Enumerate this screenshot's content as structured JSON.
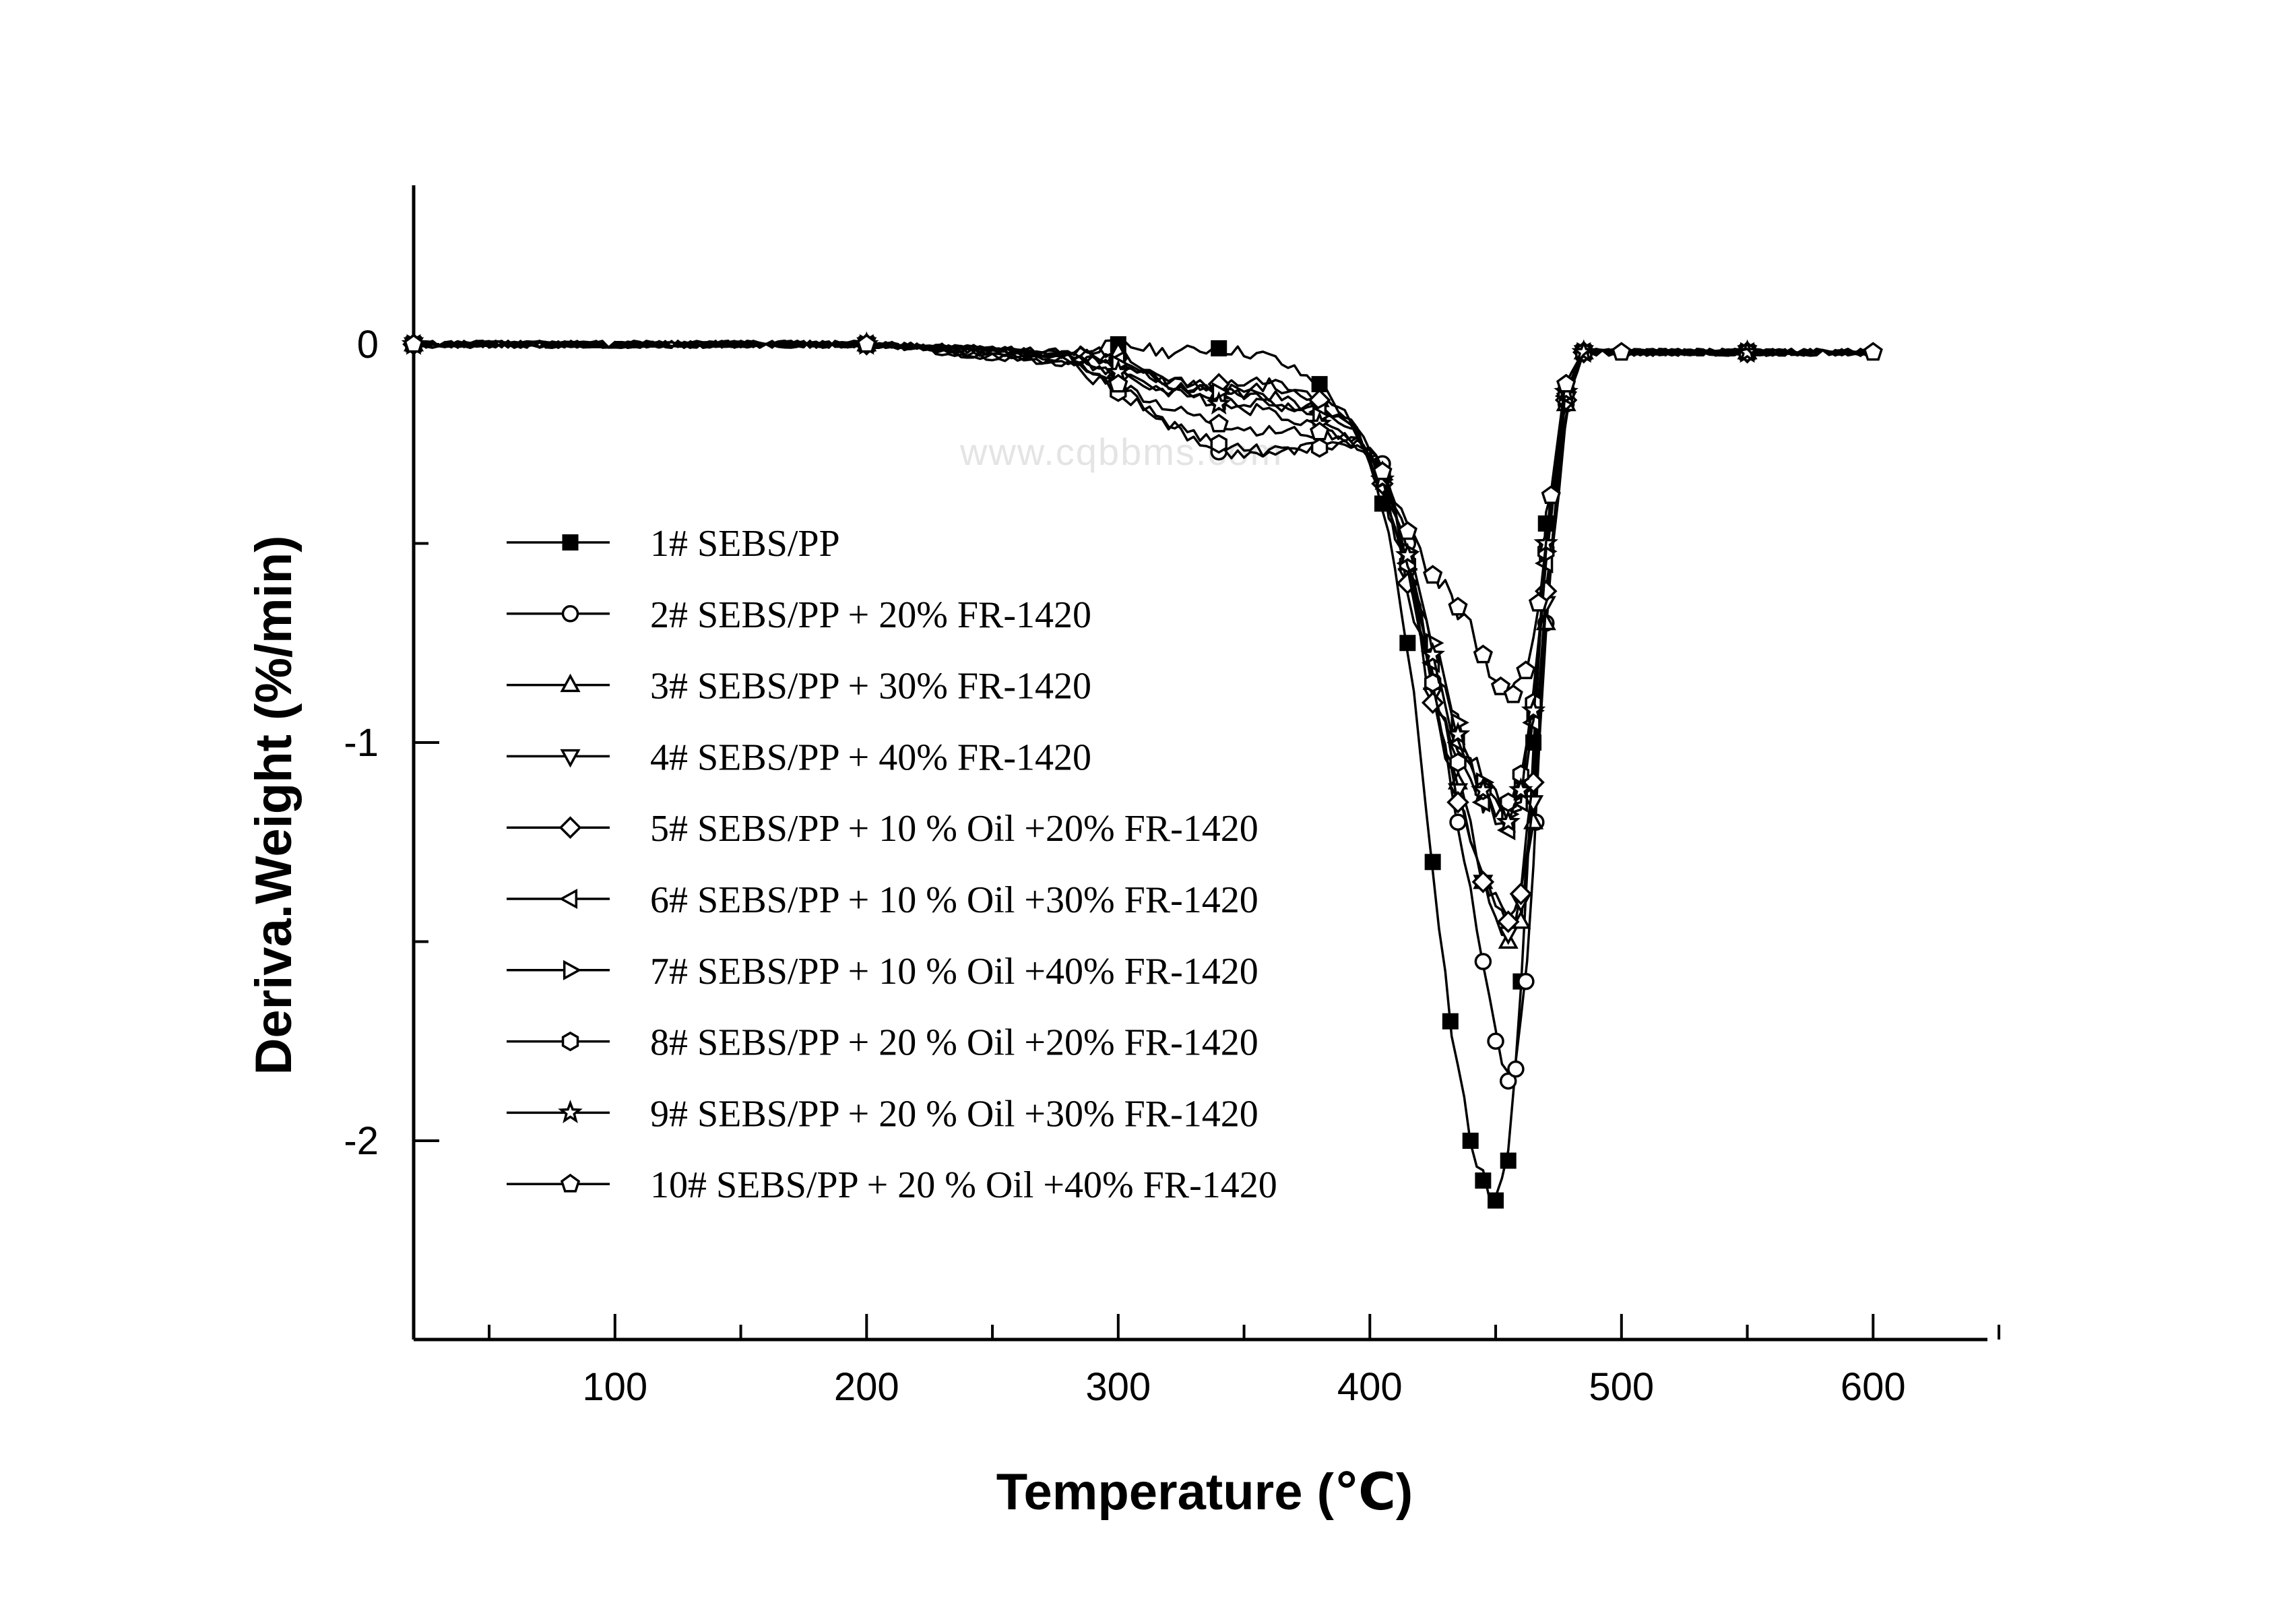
{
  "chart_data": {
    "type": "line",
    "title": "",
    "xlabel": "Temperature (℃)",
    "ylabel": "Deriva.Weight (%/min)",
    "xlim": [
      20,
      650
    ],
    "ylim": [
      -2.5,
      0.4
    ],
    "xticks": [
      100,
      200,
      300,
      400,
      500,
      600
    ],
    "yticks": [
      0,
      -1,
      -2
    ],
    "xtick_labels": [
      "100",
      "200",
      "300",
      "400",
      "500",
      "600"
    ],
    "ytick_labels": [
      "0",
      "-1",
      "-2"
    ],
    "grid": false,
    "legend_position": "center-left",
    "watermark": "www.cqbbms.com",
    "series": [
      {
        "name": "1# SEBS/PP",
        "marker": "filled-square",
        "x": [
          20,
          100,
          200,
          280,
          300,
          320,
          340,
          360,
          380,
          395,
          405,
          415,
          425,
          432,
          440,
          445,
          450,
          455,
          460,
          465,
          470,
          478,
          485,
          500,
          550,
          600
        ],
        "y": [
          0,
          0,
          0,
          -0.02,
          0.0,
          -0.02,
          -0.01,
          -0.03,
          -0.1,
          -0.22,
          -0.4,
          -0.75,
          -1.3,
          -1.7,
          -2.0,
          -2.1,
          -2.15,
          -2.05,
          -1.6,
          -1.0,
          -0.45,
          -0.12,
          -0.02,
          -0.02,
          -0.02,
          -0.02
        ]
      },
      {
        "name": "2# SEBS/PP + 20% FR-1420",
        "marker": "open-circle",
        "x": [
          20,
          100,
          200,
          280,
          300,
          320,
          340,
          360,
          380,
          395,
          405,
          415,
          425,
          435,
          445,
          450,
          455,
          458,
          462,
          466,
          470,
          478,
          485,
          500,
          550,
          600
        ],
        "y": [
          0,
          0,
          0,
          -0.04,
          -0.1,
          -0.2,
          -0.27,
          -0.28,
          -0.26,
          -0.24,
          -0.3,
          -0.5,
          -0.85,
          -1.2,
          -1.55,
          -1.75,
          -1.85,
          -1.82,
          -1.6,
          -1.2,
          -0.7,
          -0.15,
          -0.02,
          -0.02,
          -0.02,
          -0.02
        ]
      },
      {
        "name": "3# SEBS/PP + 30% FR-1420",
        "marker": "open-triangle-up",
        "x": [
          20,
          100,
          200,
          280,
          300,
          320,
          340,
          360,
          380,
          395,
          405,
          415,
          425,
          435,
          445,
          455,
          460,
          465,
          470,
          478,
          485,
          500,
          550,
          600
        ],
        "y": [
          0,
          0,
          0,
          -0.02,
          -0.02,
          -0.08,
          -0.12,
          -0.1,
          -0.14,
          -0.2,
          -0.32,
          -0.55,
          -0.85,
          -1.1,
          -1.35,
          -1.5,
          -1.45,
          -1.2,
          -0.7,
          -0.15,
          -0.02,
          -0.02,
          -0.02,
          -0.02
        ]
      },
      {
        "name": "4# SEBS/PP + 40% FR-1420",
        "marker": "open-triangle-down",
        "x": [
          20,
          100,
          200,
          280,
          300,
          320,
          340,
          360,
          380,
          395,
          405,
          415,
          425,
          435,
          445,
          455,
          460,
          465,
          470,
          478,
          485,
          500,
          550,
          600
        ],
        "y": [
          0,
          0,
          0,
          -0.03,
          -0.05,
          -0.1,
          -0.12,
          -0.13,
          -0.16,
          -0.22,
          -0.35,
          -0.58,
          -0.88,
          -1.12,
          -1.35,
          -1.48,
          -1.4,
          -1.15,
          -0.65,
          -0.14,
          -0.02,
          -0.02,
          -0.02,
          -0.02
        ]
      },
      {
        "name": "5# SEBS/PP + 10 % Oil +20% FR-1420",
        "marker": "open-diamond",
        "x": [
          20,
          100,
          200,
          280,
          300,
          320,
          340,
          360,
          380,
          395,
          405,
          415,
          425,
          435,
          445,
          455,
          460,
          465,
          470,
          478,
          485,
          500,
          550,
          600
        ],
        "y": [
          0,
          0,
          0,
          -0.03,
          -0.08,
          -0.12,
          -0.1,
          -0.09,
          -0.14,
          -0.22,
          -0.35,
          -0.6,
          -0.9,
          -1.15,
          -1.35,
          -1.45,
          -1.38,
          -1.1,
          -0.62,
          -0.14,
          -0.02,
          -0.02,
          -0.02,
          -0.02
        ]
      },
      {
        "name": "6# SEBS/PP + 10 % Oil +30% FR-1420",
        "marker": "open-triangle-left",
        "x": [
          20,
          100,
          200,
          280,
          300,
          320,
          340,
          360,
          380,
          395,
          405,
          415,
          425,
          435,
          445,
          455,
          460,
          465,
          470,
          478,
          485,
          500,
          550,
          600
        ],
        "y": [
          0,
          0,
          0,
          -0.02,
          -0.04,
          -0.1,
          -0.14,
          -0.15,
          -0.17,
          -0.22,
          -0.33,
          -0.55,
          -0.8,
          -1.0,
          -1.15,
          -1.22,
          -1.15,
          -0.95,
          -0.55,
          -0.13,
          -0.02,
          -0.02,
          -0.02,
          -0.02
        ]
      },
      {
        "name": "7# SEBS/PP + 10 % Oil +40% FR-1420",
        "marker": "open-triangle-right",
        "x": [
          20,
          100,
          200,
          280,
          300,
          320,
          340,
          360,
          380,
          395,
          405,
          415,
          425,
          435,
          445,
          455,
          460,
          465,
          470,
          478,
          485,
          500,
          550,
          600
        ],
        "y": [
          0,
          0,
          0,
          -0.02,
          -0.05,
          -0.09,
          -0.12,
          -0.14,
          -0.18,
          -0.24,
          -0.34,
          -0.52,
          -0.75,
          -0.95,
          -1.1,
          -1.18,
          -1.12,
          -0.92,
          -0.52,
          -0.12,
          -0.02,
          -0.02,
          -0.02,
          -0.02
        ]
      },
      {
        "name": "8# SEBS/PP + 20 % Oil +20% FR-1420",
        "marker": "open-hexagon",
        "x": [
          20,
          100,
          200,
          280,
          300,
          320,
          340,
          360,
          380,
          395,
          405,
          415,
          425,
          435,
          445,
          455,
          460,
          465,
          470,
          478,
          485,
          500,
          550,
          600
        ],
        "y": [
          0,
          0,
          0,
          -0.05,
          -0.12,
          -0.2,
          -0.25,
          -0.27,
          -0.26,
          -0.25,
          -0.33,
          -0.55,
          -0.85,
          -1.05,
          -1.12,
          -1.15,
          -1.08,
          -0.9,
          -0.52,
          -0.12,
          -0.02,
          -0.02,
          -0.02,
          -0.02
        ]
      },
      {
        "name": "9# SEBS/PP + 20 % Oil +30% FR-1420",
        "marker": "open-star",
        "x": [
          20,
          100,
          200,
          280,
          300,
          320,
          340,
          360,
          380,
          395,
          405,
          415,
          425,
          435,
          445,
          455,
          460,
          465,
          470,
          478,
          485,
          500,
          550,
          600
        ],
        "y": [
          0,
          0,
          0,
          -0.03,
          -0.07,
          -0.12,
          -0.15,
          -0.17,
          -0.2,
          -0.25,
          -0.34,
          -0.53,
          -0.78,
          -0.98,
          -1.12,
          -1.2,
          -1.12,
          -0.92,
          -0.5,
          -0.12,
          -0.02,
          -0.02,
          -0.02,
          -0.02
        ]
      },
      {
        "name": "10# SEBS/PP + 20 % Oil +40% FR-1420",
        "marker": "open-pentagon",
        "x": [
          20,
          100,
          200,
          280,
          300,
          320,
          340,
          360,
          380,
          395,
          405,
          415,
          425,
          435,
          445,
          452,
          457,
          462,
          467,
          472,
          478,
          485,
          500,
          550,
          600
        ],
        "y": [
          0,
          0,
          0,
          -0.05,
          -0.1,
          -0.16,
          -0.2,
          -0.22,
          -0.22,
          -0.24,
          -0.32,
          -0.47,
          -0.58,
          -0.66,
          -0.78,
          -0.86,
          -0.88,
          -0.82,
          -0.65,
          -0.38,
          -0.1,
          -0.02,
          -0.02,
          -0.02,
          -0.02
        ]
      }
    ]
  }
}
